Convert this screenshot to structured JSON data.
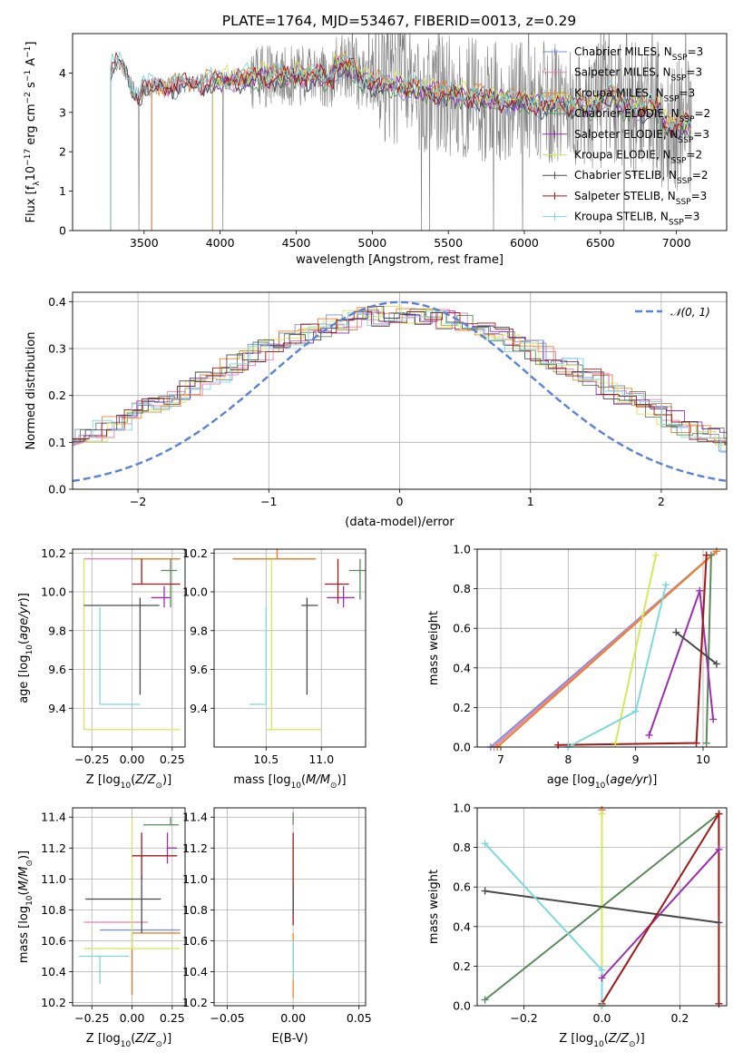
{
  "figure_title": "PLATE=1764, MJD=53467, FIBERID=0013, z=0.29",
  "colors": {
    "Chabrier MILES": "#7f8fd6",
    "Salpeter MILES": "#e87fb0",
    "Kroupa MILES": "#e8832a",
    "Chabrier ELODIE": "#5a8a5a",
    "Salpeter ELODIE": "#9b2fae",
    "Kroupa ELODIE": "#d4e85a",
    "Chabrier STELIB": "#4a4a4a",
    "Salpeter STELIB": "#a01818",
    "Kroupa STELIB": "#7fd8dc",
    "data": "#808080",
    "normal": "#5a82d6"
  },
  "legend_spectrum": [
    {
      "name": "Chabrier MILES",
      "nssp": "=3"
    },
    {
      "name": "Salpeter MILES",
      "nssp": "=3"
    },
    {
      "name": "Kroupa MILES",
      "nssp": "=3"
    },
    {
      "name": "Chabrier ELODIE",
      "nssp": "=2"
    },
    {
      "name": "Salpeter ELODIE",
      "nssp": "=3"
    },
    {
      "name": "Kroupa ELODIE",
      "nssp": "=2"
    },
    {
      "name": "Chabrier STELIB",
      "nssp": "=2"
    },
    {
      "name": "Salpeter STELIB",
      "nssp": "=3"
    },
    {
      "name": "Kroupa STELIB",
      "nssp": "=3"
    }
  ],
  "legend_hist": "𝒩(0, 1)",
  "chart_data": [
    {
      "id": "spectrum",
      "type": "line",
      "xlabel": "wavelength [Angstrom, rest frame]",
      "ylabel": "Flux [f_λ 10^-17 erg cm^-2 s^-1 A^-1]",
      "xlim": [
        3030,
        7330
      ],
      "ylim": [
        0,
        5
      ],
      "xticks": [
        3500,
        4000,
        4500,
        5000,
        5500,
        6000,
        6500,
        7000
      ],
      "yticks": [
        0,
        1,
        2,
        3,
        4
      ],
      "model_start": {
        "Chabrier MILES": 3550,
        "Salpeter MILES": 3550,
        "Kroupa MILES": 3550,
        "Chabrier ELODIE": 3950,
        "Salpeter ELODIE": 3950,
        "Kroupa ELODIE": 3950,
        "Chabrier STELIB": 3280,
        "Salpeter STELIB": 3280,
        "Kroupa STELIB": 3280
      },
      "model_end": 7100
    },
    {
      "id": "residuals",
      "type": "line",
      "xlabel": "(data-model)/error",
      "ylabel": "Normed distribution",
      "xlim": [
        -2.5,
        2.5
      ],
      "ylim": [
        0,
        0.42
      ],
      "xticks": [
        -2,
        -1,
        0,
        1,
        2
      ],
      "yticks": [
        0.0,
        0.1,
        0.2,
        0.3,
        0.4
      ]
    },
    {
      "id": "age_vs_Z",
      "type": "scatter",
      "xlabel": "Z [log10(Z/Z☉)]",
      "ylabel": "age [log10(age/yr)]",
      "xlim": [
        -0.37,
        0.33
      ],
      "ylim": [
        9.2,
        10.22
      ],
      "xticks": [
        -0.25,
        0.0,
        0.25
      ],
      "yticks": [
        9.4,
        9.6,
        9.8,
        10.0,
        10.2
      ],
      "points": [
        {
          "series": "Chabrier MILES",
          "x": 0.0,
          "y": 10.17,
          "xerr": [
            0.0,
            0.3
          ],
          "yerr": [
            0.0,
            0.0
          ]
        },
        {
          "series": "Salpeter MILES",
          "x": -0.3,
          "y": 10.17,
          "xerr": [
            0.0,
            0.58
          ],
          "yerr": [
            0.0,
            0.0
          ]
        },
        {
          "series": "Kroupa MILES",
          "x": 0.0,
          "y": 10.17,
          "xerr": [
            0.0,
            0.3
          ],
          "yerr": [
            0.0,
            0.0
          ]
        },
        {
          "series": "Chabrier ELODIE",
          "x": 0.24,
          "y": 10.11,
          "xerr": [
            0.06,
            0.04
          ],
          "yerr": [
            0.19,
            0.06
          ]
        },
        {
          "series": "Salpeter ELODIE",
          "x": 0.2,
          "y": 9.97,
          "xerr": [
            0.08,
            0.04
          ],
          "yerr": [
            0.05,
            0.06
          ]
        },
        {
          "series": "Kroupa ELODIE",
          "x": -0.3,
          "y": 9.29,
          "xerr": [
            0.0,
            0.6
          ],
          "yerr": [
            0.0,
            0.88
          ]
        },
        {
          "series": "Chabrier STELIB",
          "x": 0.05,
          "y": 9.93,
          "xerr": [
            0.35,
            0.12
          ],
          "yerr": [
            0.46,
            0.04
          ]
        },
        {
          "series": "Salpeter STELIB",
          "x": 0.06,
          "y": 10.04,
          "xerr": [
            0.06,
            0.24
          ],
          "yerr": [
            0.0,
            0.13
          ]
        },
        {
          "series": "Kroupa STELIB",
          "x": -0.2,
          "y": 9.42,
          "xerr": [
            0.0,
            0.25
          ],
          "yerr": [
            0.0,
            0.5
          ]
        }
      ]
    },
    {
      "id": "age_vs_mass",
      "type": "scatter",
      "xlabel": "mass [log10(M/M☉)]",
      "ylabel": "",
      "xlim": [
        10.03,
        11.4
      ],
      "ylim": [
        9.2,
        10.22
      ],
      "xticks": [
        10.5,
        11.0
      ],
      "yticks": [
        9.4,
        9.6,
        9.8,
        10.0,
        10.2
      ],
      "points": [
        {
          "series": "Chabrier MILES",
          "x": 10.6,
          "y": 10.17,
          "xerr": [
            0.4,
            0.35
          ],
          "yerr": [
            0.0,
            0.0
          ]
        },
        {
          "series": "Salpeter MILES",
          "x": 10.6,
          "y": 10.17,
          "xerr": [
            0.4,
            0.35
          ],
          "yerr": [
            0.0,
            0.2
          ]
        },
        {
          "series": "Kroupa MILES",
          "x": 10.6,
          "y": 10.17,
          "xerr": [
            0.4,
            0.35
          ],
          "yerr": [
            0.0,
            0.2
          ]
        },
        {
          "series": "Chabrier ELODIE",
          "x": 11.35,
          "y": 10.11,
          "xerr": [
            0.1,
            0.05
          ],
          "yerr": [
            0.15,
            0.06
          ]
        },
        {
          "series": "Salpeter ELODIE",
          "x": 11.2,
          "y": 9.97,
          "xerr": [
            0.15,
            0.1
          ],
          "yerr": [
            0.05,
            0.06
          ]
        },
        {
          "series": "Kroupa ELODIE",
          "x": 10.55,
          "y": 9.29,
          "xerr": [
            0.05,
            0.45
          ],
          "yerr": [
            0.0,
            0.88
          ]
        },
        {
          "series": "Chabrier STELIB",
          "x": 10.87,
          "y": 9.93,
          "xerr": [
            0.05,
            0.1
          ],
          "yerr": [
            0.46,
            0.04
          ]
        },
        {
          "series": "Salpeter STELIB",
          "x": 11.15,
          "y": 10.04,
          "xerr": [
            0.12,
            0.1
          ],
          "yerr": [
            0.1,
            0.13
          ]
        },
        {
          "series": "Kroupa STELIB",
          "x": 10.5,
          "y": 9.42,
          "xerr": [
            0.15,
            0.0
          ],
          "yerr": [
            0.0,
            0.5
          ]
        }
      ]
    },
    {
      "id": "weight_vs_age",
      "type": "line",
      "xlabel": "age [log10(age/yr)]",
      "ylabel": "mass weight",
      "xlim": [
        6.65,
        10.35
      ],
      "ylim": [
        0.0,
        1.0
      ],
      "xticks": [
        7,
        8,
        9,
        10
      ],
      "yticks": [
        0.0,
        0.2,
        0.4,
        0.6,
        0.8,
        1.0
      ],
      "series": [
        {
          "name": "Chabrier MILES",
          "x": [
            6.85,
            10.2
          ],
          "y": [
            0.0,
            0.99
          ]
        },
        {
          "name": "Salpeter MILES",
          "x": [
            6.9,
            10.2
          ],
          "y": [
            0.0,
            0.99
          ]
        },
        {
          "name": "Kroupa MILES",
          "x": [
            6.95,
            10.2
          ],
          "y": [
            0.0,
            0.99
          ]
        },
        {
          "name": "Chabrier ELODIE",
          "x": [
            10.05,
            10.12
          ],
          "y": [
            0.02,
            0.97
          ]
        },
        {
          "name": "Salpeter ELODIE",
          "x": [
            9.2,
            9.95,
            10.15
          ],
          "y": [
            0.06,
            0.79,
            0.14
          ]
        },
        {
          "name": "Kroupa ELODIE",
          "x": [
            8.7,
            9.3
          ],
          "y": [
            0.02,
            0.97
          ]
        },
        {
          "name": "Chabrier STELIB",
          "x": [
            9.6,
            10.2
          ],
          "y": [
            0.58,
            0.42
          ]
        },
        {
          "name": "Salpeter STELIB",
          "x": [
            7.85,
            9.9,
            10.05
          ],
          "y": [
            0.01,
            0.02,
            0.97
          ]
        },
        {
          "name": "Kroupa STELIB",
          "x": [
            8.0,
            9.0,
            9.45
          ],
          "y": [
            0.0,
            0.18,
            0.82
          ]
        }
      ]
    },
    {
      "id": "mass_vs_Z",
      "type": "scatter",
      "xlabel": "Z [log10(Z/Z☉)]",
      "ylabel": "mass [log10(M/M☉)]",
      "xlim": [
        -0.37,
        0.33
      ],
      "ylim": [
        10.18,
        11.46
      ],
      "xticks": [
        -0.25,
        0.0,
        0.25
      ],
      "yticks": [
        10.2,
        10.4,
        10.6,
        10.8,
        11.0,
        11.2,
        11.4
      ],
      "points": [
        {
          "series": "Chabrier MILES",
          "x": 0.0,
          "y": 10.67,
          "xerr": [
            0.2,
            0.3
          ],
          "yerr": [
            0.42,
            0.0
          ]
        },
        {
          "series": "Salpeter MILES",
          "x": -0.3,
          "y": 10.72,
          "xerr": [
            0.0,
            0.4
          ],
          "yerr": [
            0.0,
            0.0
          ]
        },
        {
          "series": "Kroupa MILES",
          "x": 0.0,
          "y": 10.65,
          "xerr": [
            0.0,
            0.3
          ],
          "yerr": [
            0.4,
            0.0
          ]
        },
        {
          "series": "Chabrier ELODIE",
          "x": 0.24,
          "y": 11.35,
          "xerr": [
            0.17,
            0.05
          ],
          "yerr": [
            0.0,
            0.05
          ]
        },
        {
          "series": "Salpeter ELODIE",
          "x": 0.22,
          "y": 11.2,
          "xerr": [
            0.0,
            0.06
          ],
          "yerr": [
            0.1,
            0.1
          ]
        },
        {
          "series": "Kroupa ELODIE",
          "x": 0.0,
          "y": 10.55,
          "xerr": [
            0.3,
            0.3
          ],
          "yerr": [
            0.0,
            0.85
          ]
        },
        {
          "series": "Chabrier STELIB",
          "x": 0.06,
          "y": 10.87,
          "xerr": [
            0.35,
            0.12
          ],
          "yerr": [
            0.22,
            0.15
          ]
        },
        {
          "series": "Salpeter STELIB",
          "x": 0.06,
          "y": 11.15,
          "xerr": [
            0.06,
            0.22
          ],
          "yerr": [
            0.15,
            0.15
          ]
        },
        {
          "series": "Kroupa STELIB",
          "x": -0.2,
          "y": 10.5,
          "xerr": [
            0.13,
            0.18
          ],
          "yerr": [
            0.18,
            0.0
          ]
        }
      ]
    },
    {
      "id": "mass_vs_ebv",
      "type": "scatter",
      "xlabel": "E(B-V)",
      "ylabel": "",
      "xlim": [
        -0.06,
        0.055
      ],
      "ylim": [
        10.18,
        11.46
      ],
      "xticks": [
        -0.05,
        0.0,
        0.05
      ],
      "yticks": [
        10.2,
        10.4,
        10.6,
        10.8,
        11.0,
        11.2,
        11.4
      ],
      "points": [
        {
          "series": "Kroupa MILES",
          "x": 0.0,
          "y": 10.65,
          "yerr": [
            0.42,
            0.0
          ]
        },
        {
          "series": "Chabrier ELODIE",
          "x": 0.0,
          "y": 11.35,
          "yerr": [
            0.0,
            0.08
          ]
        },
        {
          "series": "Salpeter STELIB",
          "x": 0.0,
          "y": 11.15,
          "yerr": [
            0.45,
            0.15
          ]
        },
        {
          "series": "Chabrier STELIB",
          "x": 0.0,
          "y": 10.87,
          "yerr": [
            0.1,
            0.1
          ]
        },
        {
          "series": "Kroupa STELIB",
          "x": 0.0,
          "y": 10.5,
          "yerr": [
            0.15,
            0.1
          ]
        }
      ]
    },
    {
      "id": "weight_vs_Z",
      "type": "line",
      "xlabel": "Z [log10(Z/Z☉)]",
      "ylabel": "mass weight",
      "xlim": [
        -0.32,
        0.32
      ],
      "ylim": [
        0.0,
        1.0
      ],
      "xticks": [
        -0.2,
        0.0,
        0.2
      ],
      "yticks": [
        0.0,
        0.2,
        0.4,
        0.6,
        0.8,
        1.0
      ],
      "series": [
        {
          "name": "Chabrier MILES",
          "x": [
            0.0,
            0.0
          ],
          "y": [
            0.0,
            0.99
          ]
        },
        {
          "name": "Salpeter MILES",
          "x": [
            0.0,
            0.0
          ],
          "y": [
            0.0,
            0.99
          ]
        },
        {
          "name": "Kroupa MILES",
          "x": [
            0.0,
            0.0
          ],
          "y": [
            0.0,
            0.99
          ]
        },
        {
          "name": "Chabrier ELODIE",
          "x": [
            -0.3,
            0.3
          ],
          "y": [
            0.03,
            0.97
          ]
        },
        {
          "name": "Salpeter ELODIE",
          "x": [
            0.0,
            0.3
          ],
          "y": [
            0.14,
            0.79
          ]
        },
        {
          "name": "Kroupa ELODIE",
          "x": [
            0.0,
            0.0
          ],
          "y": [
            0.0,
            0.97
          ]
        },
        {
          "name": "Chabrier STELIB",
          "x": [
            -0.3,
            0.3
          ],
          "y": [
            0.58,
            0.42
          ]
        },
        {
          "name": "Salpeter STELIB",
          "x": [
            0.0,
            0.3,
            0.3
          ],
          "y": [
            0.01,
            0.97,
            0.01
          ]
        },
        {
          "name": "Kroupa STELIB",
          "x": [
            -0.3,
            0.0,
            0.0
          ],
          "y": [
            0.82,
            0.18,
            0.0
          ]
        }
      ]
    }
  ]
}
